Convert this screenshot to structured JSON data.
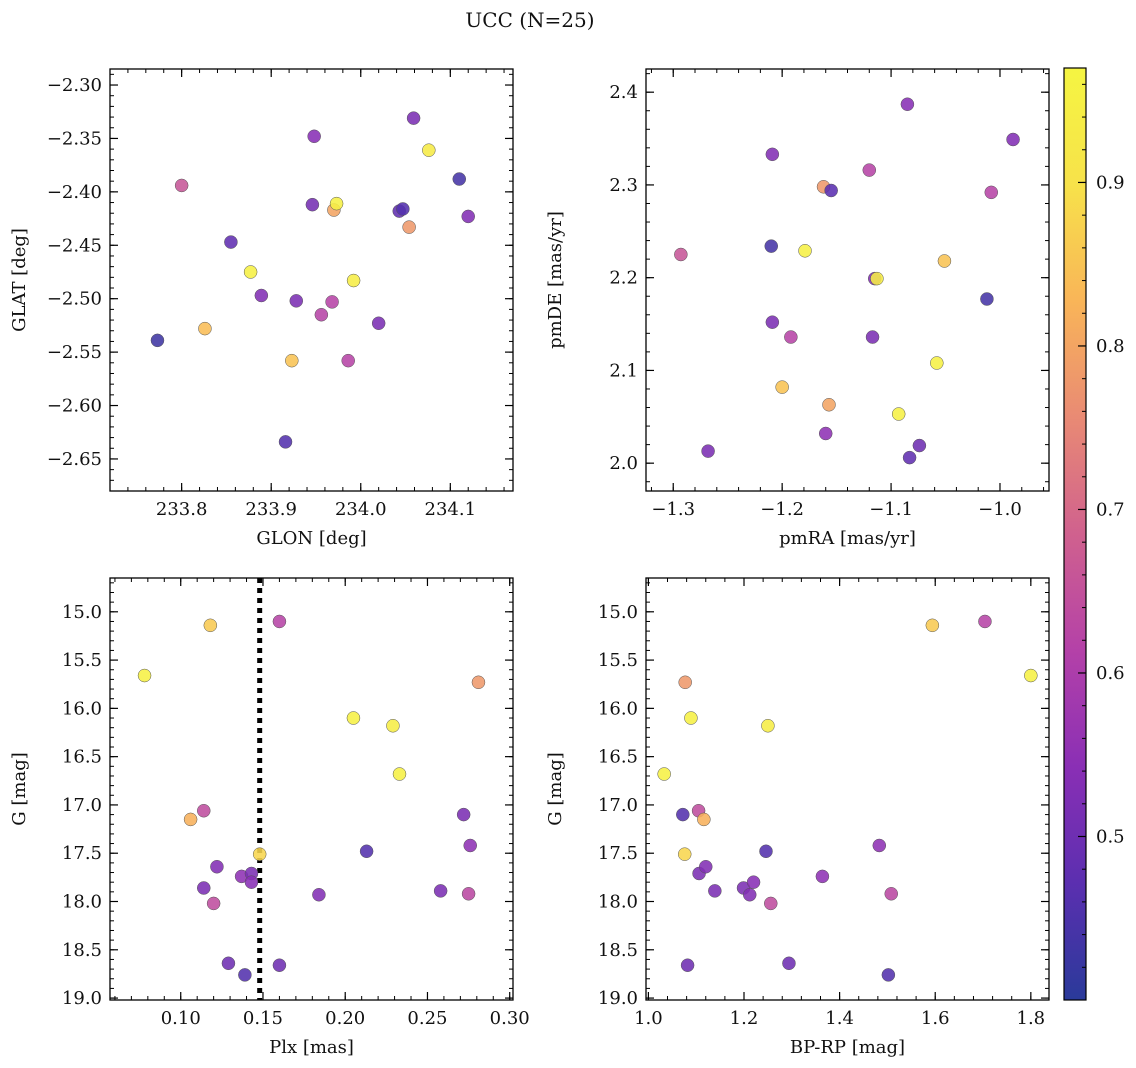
{
  "figure_title": "UCC (N=25)",
  "colorbar": {
    "min": 0.4,
    "max": 0.97,
    "ticks": [
      0.5,
      0.6,
      0.7,
      0.8,
      0.9
    ],
    "tick_labels": [
      "0.5",
      "0.6",
      "0.7",
      "0.8",
      "0.9"
    ],
    "colormap": "plasma",
    "colormap_stops": [
      "#2a3a9a",
      "#5b2fb0",
      "#8a2fb5",
      "#b441a8",
      "#d0618e",
      "#e98a74",
      "#f9b558",
      "#f7e24a",
      "#f5f542"
    ]
  },
  "chart_data": [
    {
      "type": "scatter",
      "id": "glon_glat",
      "xlabel": "GLON [deg]",
      "ylabel": "GLAT [deg]",
      "xlim": [
        233.72,
        234.17
      ],
      "ylim": [
        -2.68,
        -2.285
      ],
      "y_inverted": false,
      "xticks": [
        233.8,
        233.9,
        234.0,
        234.1
      ],
      "xtick_labels": [
        "233.8",
        "233.9",
        "234.0",
        "234.1"
      ],
      "yticks": [
        -2.3,
        -2.35,
        -2.4,
        -2.45,
        -2.5,
        -2.55,
        -2.6,
        -2.65
      ],
      "ytick_labels": [
        "−2.30",
        "−2.35",
        "−2.40",
        "−2.45",
        "−2.50",
        "−2.55",
        "−2.60",
        "−2.65"
      ],
      "points": [
        {
          "x": 233.773,
          "y": -2.539,
          "c": 0.43
        },
        {
          "x": 233.8,
          "y": -2.394,
          "c": 0.66
        },
        {
          "x": 233.826,
          "y": -2.528,
          "c": 0.84
        },
        {
          "x": 233.855,
          "y": -2.447,
          "c": 0.48
        },
        {
          "x": 233.877,
          "y": -2.475,
          "c": 0.95
        },
        {
          "x": 233.889,
          "y": -2.497,
          "c": 0.53
        },
        {
          "x": 233.916,
          "y": -2.634,
          "c": 0.46
        },
        {
          "x": 233.923,
          "y": -2.558,
          "c": 0.85
        },
        {
          "x": 233.928,
          "y": -2.502,
          "c": 0.52
        },
        {
          "x": 233.946,
          "y": -2.412,
          "c": 0.51
        },
        {
          "x": 233.948,
          "y": -2.348,
          "c": 0.54
        },
        {
          "x": 233.956,
          "y": -2.515,
          "c": 0.62
        },
        {
          "x": 233.968,
          "y": -2.503,
          "c": 0.62
        },
        {
          "x": 233.97,
          "y": -2.417,
          "c": 0.8
        },
        {
          "x": 233.973,
          "y": -2.411,
          "c": 0.95
        },
        {
          "x": 233.986,
          "y": -2.558,
          "c": 0.62
        },
        {
          "x": 233.992,
          "y": -2.483,
          "c": 0.94
        },
        {
          "x": 234.02,
          "y": -2.523,
          "c": 0.52
        },
        {
          "x": 234.043,
          "y": -2.418,
          "c": 0.48
        },
        {
          "x": 234.047,
          "y": -2.416,
          "c": 0.46
        },
        {
          "x": 234.054,
          "y": -2.433,
          "c": 0.78
        },
        {
          "x": 234.059,
          "y": -2.331,
          "c": 0.52
        },
        {
          "x": 234.076,
          "y": -2.361,
          "c": 0.93
        },
        {
          "x": 234.11,
          "y": -2.388,
          "c": 0.44
        },
        {
          "x": 234.12,
          "y": -2.423,
          "c": 0.53
        }
      ]
    },
    {
      "type": "scatter",
      "id": "pmra_pmde",
      "xlabel": "pmRA [mas/yr]",
      "ylabel": "pmDE [mas/yr]",
      "xlim": [
        -1.325,
        -0.955
      ],
      "ylim": [
        1.97,
        2.425
      ],
      "y_inverted": false,
      "xticks": [
        -1.3,
        -1.2,
        -1.1,
        -1.0
      ],
      "xtick_labels": [
        "−1.3",
        "−1.2",
        "−1.1",
        "−1.0"
      ],
      "yticks": [
        2.0,
        2.1,
        2.2,
        2.3,
        2.4
      ],
      "ytick_labels": [
        "2.0",
        "2.1",
        "2.2",
        "2.3",
        "2.4"
      ],
      "points": [
        {
          "x": -1.293,
          "y": 2.225,
          "c": 0.66
        },
        {
          "x": -1.268,
          "y": 2.013,
          "c": 0.52
        },
        {
          "x": -1.209,
          "y": 2.333,
          "c": 0.53
        },
        {
          "x": -1.21,
          "y": 2.234,
          "c": 0.44
        },
        {
          "x": -1.209,
          "y": 2.152,
          "c": 0.52
        },
        {
          "x": -1.2,
          "y": 2.082,
          "c": 0.85
        },
        {
          "x": -1.192,
          "y": 2.136,
          "c": 0.62
        },
        {
          "x": -1.179,
          "y": 2.229,
          "c": 0.95
        },
        {
          "x": -1.162,
          "y": 2.298,
          "c": 0.78
        },
        {
          "x": -1.16,
          "y": 2.032,
          "c": 0.55
        },
        {
          "x": -1.157,
          "y": 2.063,
          "c": 0.8
        },
        {
          "x": -1.155,
          "y": 2.294,
          "c": 0.47
        },
        {
          "x": -1.12,
          "y": 2.316,
          "c": 0.62
        },
        {
          "x": -1.117,
          "y": 2.136,
          "c": 0.52
        },
        {
          "x": -1.115,
          "y": 2.199,
          "c": 0.53
        },
        {
          "x": -1.113,
          "y": 2.199,
          "c": 0.94
        },
        {
          "x": -1.093,
          "y": 2.053,
          "c": 0.95
        },
        {
          "x": -1.085,
          "y": 2.387,
          "c": 0.54
        },
        {
          "x": -1.083,
          "y": 2.006,
          "c": 0.48
        },
        {
          "x": -1.074,
          "y": 2.019,
          "c": 0.5
        },
        {
          "x": -1.058,
          "y": 2.108,
          "c": 0.95
        },
        {
          "x": -1.051,
          "y": 2.218,
          "c": 0.85
        },
        {
          "x": -1.012,
          "y": 2.177,
          "c": 0.44
        },
        {
          "x": -1.008,
          "y": 2.292,
          "c": 0.62
        },
        {
          "x": -0.988,
          "y": 2.349,
          "c": 0.53
        }
      ]
    },
    {
      "type": "scatter",
      "id": "plx_g",
      "xlabel": "Plx [mas]",
      "ylabel": "G [mag]",
      "xlim": [
        0.057,
        0.302
      ],
      "ylim": [
        14.65,
        19.02
      ],
      "y_inverted": true,
      "xticks": [
        0.1,
        0.15,
        0.2,
        0.25,
        0.3
      ],
      "xtick_labels": [
        "0.10",
        "0.15",
        "0.20",
        "0.25",
        "0.30"
      ],
      "yticks": [
        15.0,
        15.5,
        16.0,
        16.5,
        17.0,
        17.5,
        18.0,
        18.5,
        19.0
      ],
      "ytick_labels": [
        "15.0",
        "15.5",
        "16.0",
        "16.5",
        "17.0",
        "17.5",
        "18.0",
        "18.5",
        "19.0"
      ],
      "vline": {
        "x": 0.148,
        "style": "dotted"
      },
      "points": [
        {
          "x": 0.078,
          "y": 15.66,
          "c": 0.95
        },
        {
          "x": 0.106,
          "y": 17.15,
          "c": 0.82
        },
        {
          "x": 0.114,
          "y": 17.06,
          "c": 0.64
        },
        {
          "x": 0.114,
          "y": 17.86,
          "c": 0.52
        },
        {
          "x": 0.118,
          "y": 15.14,
          "c": 0.86
        },
        {
          "x": 0.12,
          "y": 18.02,
          "c": 0.64
        },
        {
          "x": 0.122,
          "y": 17.64,
          "c": 0.53
        },
        {
          "x": 0.129,
          "y": 18.64,
          "c": 0.5
        },
        {
          "x": 0.137,
          "y": 17.74,
          "c": 0.55
        },
        {
          "x": 0.139,
          "y": 18.76,
          "c": 0.46
        },
        {
          "x": 0.143,
          "y": 17.71,
          "c": 0.52
        },
        {
          "x": 0.143,
          "y": 17.8,
          "c": 0.54
        },
        {
          "x": 0.148,
          "y": 17.51,
          "c": 0.88
        },
        {
          "x": 0.16,
          "y": 15.1,
          "c": 0.62
        },
        {
          "x": 0.16,
          "y": 18.66,
          "c": 0.5
        },
        {
          "x": 0.184,
          "y": 17.93,
          "c": 0.53
        },
        {
          "x": 0.205,
          "y": 16.1,
          "c": 0.95
        },
        {
          "x": 0.213,
          "y": 17.48,
          "c": 0.46
        },
        {
          "x": 0.229,
          "y": 16.18,
          "c": 0.94
        },
        {
          "x": 0.233,
          "y": 16.68,
          "c": 0.95
        },
        {
          "x": 0.258,
          "y": 17.89,
          "c": 0.52
        },
        {
          "x": 0.272,
          "y": 17.1,
          "c": 0.52
        },
        {
          "x": 0.275,
          "y": 17.92,
          "c": 0.63
        },
        {
          "x": 0.276,
          "y": 17.42,
          "c": 0.55
        },
        {
          "x": 0.281,
          "y": 15.73,
          "c": 0.78
        }
      ]
    },
    {
      "type": "scatter",
      "id": "bprp_g",
      "xlabel": "BP-RP [mag]",
      "ylabel": "G [mag]",
      "xlim": [
        0.995,
        1.838
      ],
      "ylim": [
        14.65,
        19.02
      ],
      "y_inverted": true,
      "xticks": [
        1.0,
        1.2,
        1.4,
        1.6,
        1.8
      ],
      "xtick_labels": [
        "1.0",
        "1.2",
        "1.4",
        "1.6",
        "1.8"
      ],
      "yticks": [
        15.0,
        15.5,
        16.0,
        16.5,
        17.0,
        17.5,
        18.0,
        18.5,
        19.0
      ],
      "ytick_labels": [
        "15.0",
        "15.5",
        "16.0",
        "16.5",
        "17.0",
        "17.5",
        "18.0",
        "18.5",
        "19.0"
      ],
      "points": [
        {
          "x": 1.033,
          "y": 16.68,
          "c": 0.95
        },
        {
          "x": 1.072,
          "y": 17.1,
          "c": 0.46
        },
        {
          "x": 1.076,
          "y": 17.51,
          "c": 0.88
        },
        {
          "x": 1.077,
          "y": 15.73,
          "c": 0.78
        },
        {
          "x": 1.082,
          "y": 18.66,
          "c": 0.5
        },
        {
          "x": 1.089,
          "y": 16.1,
          "c": 0.95
        },
        {
          "x": 1.105,
          "y": 17.06,
          "c": 0.64
        },
        {
          "x": 1.106,
          "y": 17.71,
          "c": 0.52
        },
        {
          "x": 1.116,
          "y": 17.15,
          "c": 0.82
        },
        {
          "x": 1.12,
          "y": 17.64,
          "c": 0.53
        },
        {
          "x": 1.139,
          "y": 17.89,
          "c": 0.52
        },
        {
          "x": 1.199,
          "y": 17.86,
          "c": 0.52
        },
        {
          "x": 1.212,
          "y": 17.93,
          "c": 0.53
        },
        {
          "x": 1.22,
          "y": 17.8,
          "c": 0.54
        },
        {
          "x": 1.246,
          "y": 17.48,
          "c": 0.46
        },
        {
          "x": 1.25,
          "y": 16.18,
          "c": 0.94
        },
        {
          "x": 1.256,
          "y": 18.02,
          "c": 0.64
        },
        {
          "x": 1.294,
          "y": 18.64,
          "c": 0.5
        },
        {
          "x": 1.364,
          "y": 17.74,
          "c": 0.55
        },
        {
          "x": 1.483,
          "y": 17.42,
          "c": 0.55
        },
        {
          "x": 1.502,
          "y": 18.76,
          "c": 0.46
        },
        {
          "x": 1.508,
          "y": 17.92,
          "c": 0.63
        },
        {
          "x": 1.594,
          "y": 15.14,
          "c": 0.86
        },
        {
          "x": 1.704,
          "y": 15.1,
          "c": 0.62
        },
        {
          "x": 1.8,
          "y": 15.66,
          "c": 0.95
        }
      ]
    }
  ]
}
